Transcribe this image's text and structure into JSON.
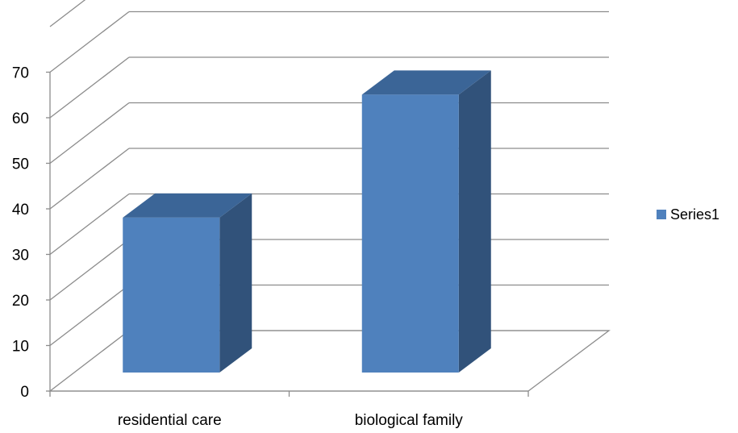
{
  "chart_data": {
    "type": "bar",
    "style": "3d-column",
    "categories": [
      "residential care",
      "biological family"
    ],
    "series": [
      {
        "name": "Series1",
        "values": [
          34,
          61
        ],
        "color": "#4f81bd"
      }
    ],
    "yticks": [
      "0",
      "10",
      "20",
      "30",
      "40",
      "50",
      "60",
      "70"
    ],
    "ylim": [
      0,
      70
    ],
    "grid": true,
    "legend": "right",
    "colors": {
      "front": "#4f81bd",
      "side": "#31527a",
      "top": "#3b6597",
      "grid": "#8c8c8c"
    }
  }
}
